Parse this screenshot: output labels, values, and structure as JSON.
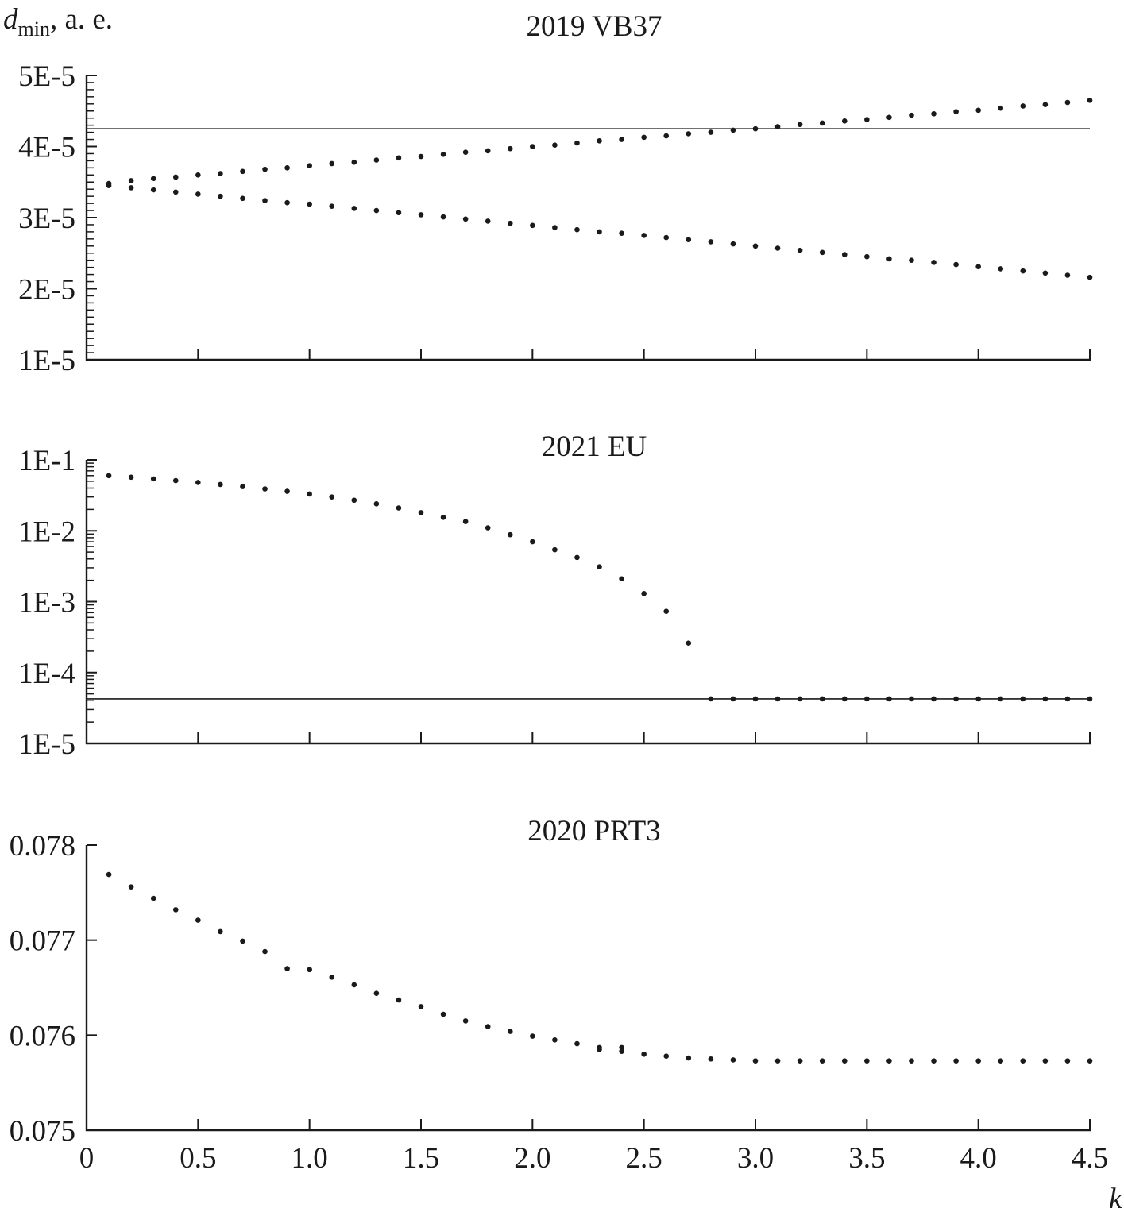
{
  "figure": {
    "y_axis_label": {
      "symbol": "d",
      "subscript": "min",
      "unit": ", а. е."
    },
    "x_axis_label": "k",
    "x_ticks": [
      {
        "value": 0,
        "label": "0"
      },
      {
        "value": 0.5,
        "label": "0.5"
      },
      {
        "value": 1.0,
        "label": "1.0"
      },
      {
        "value": 1.5,
        "label": "1.5"
      },
      {
        "value": 2.0,
        "label": "2.0"
      },
      {
        "value": 2.5,
        "label": "2.5"
      },
      {
        "value": 3.0,
        "label": "3.0"
      },
      {
        "value": 3.5,
        "label": "3.5"
      },
      {
        "value": 4.0,
        "label": "4.0"
      },
      {
        "value": 4.5,
        "label": "4.5"
      }
    ]
  },
  "chart_data": [
    {
      "type": "scatter",
      "title": "2019 VB37",
      "xlabel": "k",
      "ylabel": "d_min, а. е.",
      "yscale": "linear",
      "xlim": [
        0,
        4.5
      ],
      "ylim": [
        1e-05,
        5e-05
      ],
      "yticks": [
        {
          "value": 5e-05,
          "label": "5E-5"
        },
        {
          "value": 4e-05,
          "label": "4E-5"
        },
        {
          "value": 3e-05,
          "label": "3E-5"
        },
        {
          "value": 2e-05,
          "label": "2E-5"
        },
        {
          "value": 1e-05,
          "label": "1E-5"
        }
      ],
      "reference_line": 4.25e-05,
      "series": [
        {
          "name": "upper branch",
          "x": [
            0.1,
            0.2,
            0.3,
            0.4,
            0.5,
            0.6,
            0.7,
            0.8,
            0.9,
            1.0,
            1.1,
            1.2,
            1.3,
            1.4,
            1.5,
            1.6,
            1.7,
            1.8,
            1.9,
            2.0,
            2.1,
            2.2,
            2.3,
            2.4,
            2.5,
            2.6,
            2.7,
            2.8,
            2.9,
            3.0,
            3.1,
            3.2,
            3.3,
            3.4,
            3.5,
            3.6,
            3.7,
            3.8,
            3.9,
            4.0,
            4.1,
            4.2,
            4.3,
            4.4,
            4.5
          ],
          "y": [
            3.48e-05,
            3.52e-05,
            3.55e-05,
            3.57e-05,
            3.6e-05,
            3.62e-05,
            3.65e-05,
            3.68e-05,
            3.7e-05,
            3.73e-05,
            3.76e-05,
            3.78e-05,
            3.81e-05,
            3.84e-05,
            3.86e-05,
            3.89e-05,
            3.92e-05,
            3.94e-05,
            3.97e-05,
            4e-05,
            4.02e-05,
            4.05e-05,
            4.08e-05,
            4.1e-05,
            4.13e-05,
            4.15e-05,
            4.18e-05,
            4.2e-05,
            4.23e-05,
            4.25e-05,
            4.28e-05,
            4.31e-05,
            4.33e-05,
            4.36e-05,
            4.38e-05,
            4.41e-05,
            4.44e-05,
            4.46e-05,
            4.49e-05,
            4.51e-05,
            4.54e-05,
            4.57e-05,
            4.59e-05,
            4.62e-05,
            4.65e-05
          ]
        },
        {
          "name": "lower branch",
          "x": [
            0.1,
            0.2,
            0.3,
            0.4,
            0.5,
            0.6,
            0.7,
            0.8,
            0.9,
            1.0,
            1.1,
            1.2,
            1.3,
            1.4,
            1.5,
            1.6,
            1.7,
            1.8,
            1.9,
            2.0,
            2.1,
            2.2,
            2.3,
            2.4,
            2.5,
            2.6,
            2.7,
            2.8,
            2.9,
            3.0,
            3.1,
            3.2,
            3.3,
            3.4,
            3.5,
            3.6,
            3.7,
            3.8,
            3.9,
            4.0,
            4.1,
            4.2,
            4.3,
            4.4,
            4.5
          ],
          "y": [
            3.45e-05,
            3.42e-05,
            3.39e-05,
            3.36e-05,
            3.33e-05,
            3.3e-05,
            3.27e-05,
            3.24e-05,
            3.21e-05,
            3.19e-05,
            3.16e-05,
            3.13e-05,
            3.1e-05,
            3.07e-05,
            3.04e-05,
            3.01e-05,
            2.98e-05,
            2.95e-05,
            2.92e-05,
            2.89e-05,
            2.86e-05,
            2.83e-05,
            2.8e-05,
            2.78e-05,
            2.75e-05,
            2.72e-05,
            2.69e-05,
            2.66e-05,
            2.63e-05,
            2.6e-05,
            2.57e-05,
            2.54e-05,
            2.51e-05,
            2.48e-05,
            2.45e-05,
            2.42e-05,
            2.4e-05,
            2.37e-05,
            2.34e-05,
            2.31e-05,
            2.28e-05,
            2.25e-05,
            2.22e-05,
            2.19e-05,
            2.16e-05
          ]
        }
      ]
    },
    {
      "type": "scatter",
      "title": "2021 EU",
      "xlabel": "k",
      "ylabel": "d_min, а. е.",
      "yscale": "log",
      "xlim": [
        0,
        4.5
      ],
      "ylim": [
        1e-05,
        0.1
      ],
      "yticks": [
        {
          "value": 0.1,
          "label": "1E-1"
        },
        {
          "value": 0.01,
          "label": "1E-2"
        },
        {
          "value": 0.001,
          "label": "1E-3"
        },
        {
          "value": 0.0001,
          "label": "1E-4"
        },
        {
          "value": 1e-05,
          "label": "1E-5"
        }
      ],
      "reference_line": 4.25e-05,
      "series": [
        {
          "name": "dmin",
          "x": [
            0.1,
            0.2,
            0.3,
            0.4,
            0.5,
            0.6,
            0.7,
            0.8,
            0.9,
            1.0,
            1.1,
            1.2,
            1.3,
            1.4,
            1.5,
            1.6,
            1.7,
            1.8,
            1.9,
            2.0,
            2.1,
            2.2,
            2.3,
            2.4,
            2.5,
            2.6,
            2.7,
            2.8,
            2.9,
            3.0,
            3.1,
            3.2,
            3.3,
            3.4,
            3.5,
            3.6,
            3.7,
            3.8,
            3.9,
            4.0,
            4.1,
            4.2,
            4.3,
            4.4,
            4.5
          ],
          "y": [
            0.06,
            0.057,
            0.054,
            0.051,
            0.048,
            0.045,
            0.042,
            0.039,
            0.036,
            0.033,
            0.03,
            0.027,
            0.024,
            0.021,
            0.018,
            0.0155,
            0.0135,
            0.011,
            0.0088,
            0.007,
            0.0054,
            0.0042,
            0.0031,
            0.0021,
            0.0013,
            0.00073,
            0.00026,
            4.25e-05,
            4.25e-05,
            4.25e-05,
            4.25e-05,
            4.25e-05,
            4.25e-05,
            4.25e-05,
            4.25e-05,
            4.25e-05,
            4.25e-05,
            4.25e-05,
            4.25e-05,
            4.25e-05,
            4.25e-05,
            4.25e-05,
            4.25e-05,
            4.25e-05,
            4.25e-05
          ]
        }
      ]
    },
    {
      "type": "scatter",
      "title": "2020 PRT3",
      "xlabel": "k",
      "ylabel": "d_min, а. е.",
      "yscale": "linear",
      "xlim": [
        0,
        4.5
      ],
      "ylim": [
        0.075,
        0.078
      ],
      "yticks": [
        {
          "value": 0.078,
          "label": "0.078"
        },
        {
          "value": 0.077,
          "label": "0.077"
        },
        {
          "value": 0.076,
          "label": "0.076"
        },
        {
          "value": 0.075,
          "label": "0.075"
        }
      ],
      "series": [
        {
          "name": "dmin",
          "x": [
            0.1,
            0.2,
            0.3,
            0.4,
            0.5,
            0.6,
            0.7,
            0.8,
            0.9,
            1.0,
            1.1,
            1.2,
            1.3,
            1.4,
            1.5,
            1.6,
            1.7,
            1.8,
            1.9,
            2.0,
            2.1,
            2.2,
            2.3,
            2.3,
            2.4,
            2.4,
            2.5,
            2.6,
            2.7,
            2.8,
            2.9,
            3.0,
            3.1,
            3.2,
            3.3,
            3.4,
            3.5,
            3.6,
            3.7,
            3.8,
            3.9,
            4.0,
            4.1,
            4.2,
            4.3,
            4.4,
            4.5
          ],
          "y": [
            0.07769,
            0.07756,
            0.07744,
            0.07732,
            0.07721,
            0.07709,
            0.07699,
            0.07688,
            0.0767,
            0.07669,
            0.07661,
            0.07653,
            0.07644,
            0.07637,
            0.0763,
            0.07622,
            0.07615,
            0.07609,
            0.07604,
            0.07599,
            0.07595,
            0.07591,
            0.07587,
            0.07585,
            0.07587,
            0.07583,
            0.0758,
            0.07578,
            0.07576,
            0.07575,
            0.07574,
            0.07573,
            0.07573,
            0.07573,
            0.07573,
            0.07573,
            0.07573,
            0.07573,
            0.07573,
            0.07573,
            0.07573,
            0.07573,
            0.07573,
            0.07573,
            0.07573,
            0.07573,
            0.07573
          ]
        }
      ]
    }
  ]
}
